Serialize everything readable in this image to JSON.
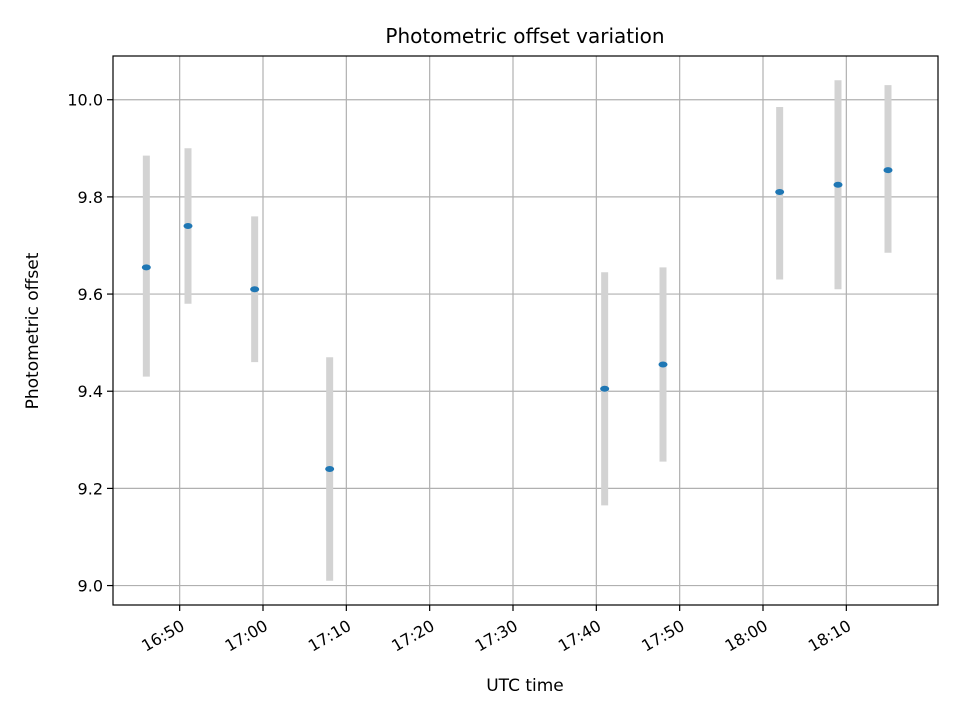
{
  "chart_data": {
    "type": "scatter",
    "title": "Photometric offset variation",
    "xlabel": "UTC time",
    "ylabel": "Photometric offset",
    "x_axis": "time",
    "xlim": [
      "16:42",
      "18:21"
    ],
    "ylim": [
      8.96,
      10.09
    ],
    "x_ticks": [
      "16:50",
      "17:00",
      "17:10",
      "17:20",
      "17:30",
      "17:40",
      "17:50",
      "18:00",
      "18:10"
    ],
    "y_ticks": [
      "9.0",
      "9.2",
      "9.4",
      "9.6",
      "9.8",
      "10.0"
    ],
    "grid": true,
    "colors": {
      "point": "#1f77b4",
      "errorbar": "#d3d3d3",
      "grid": "#b0b0b0"
    },
    "series": [
      {
        "points": [
          {
            "x": "16:46",
            "y": 9.655,
            "y_low": 9.43,
            "y_high": 9.885
          },
          {
            "x": "16:51",
            "y": 9.74,
            "y_low": 9.58,
            "y_high": 9.9
          },
          {
            "x": "16:59",
            "y": 9.61,
            "y_low": 9.46,
            "y_high": 9.76
          },
          {
            "x": "17:08",
            "y": 9.24,
            "y_low": 9.01,
            "y_high": 9.47
          },
          {
            "x": "17:41",
            "y": 9.405,
            "y_low": 9.165,
            "y_high": 9.645
          },
          {
            "x": "17:48",
            "y": 9.455,
            "y_low": 9.255,
            "y_high": 9.655
          },
          {
            "x": "18:02",
            "y": 9.81,
            "y_low": 9.63,
            "y_high": 9.985
          },
          {
            "x": "18:09",
            "y": 9.825,
            "y_low": 9.61,
            "y_high": 10.04
          },
          {
            "x": "18:15",
            "y": 9.855,
            "y_low": 9.685,
            "y_high": 10.03
          }
        ]
      }
    ]
  }
}
